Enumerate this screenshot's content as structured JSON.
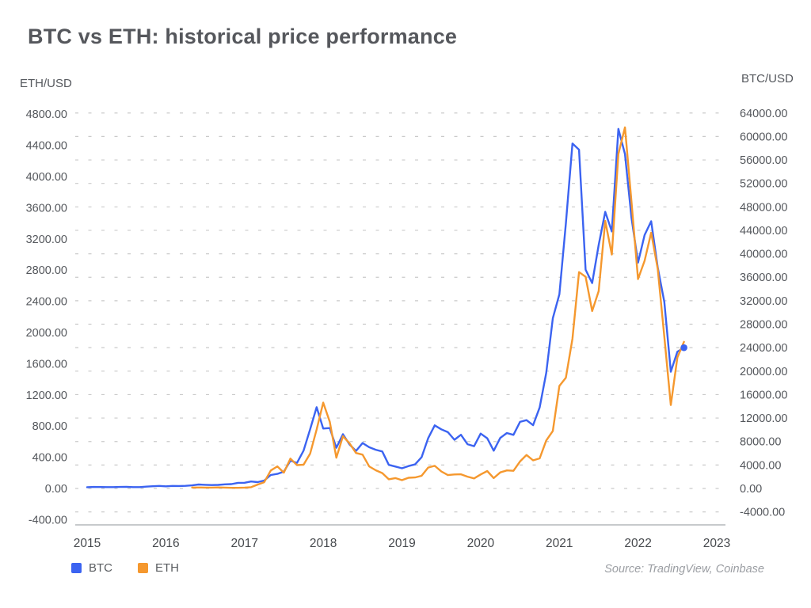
{
  "chart_data": {
    "type": "line",
    "title": "BTC vs ETH: historical price performance",
    "source": "Source: TradingView, Coinbase",
    "grid": "horizontal-dashed",
    "legend_position": "bottom-left",
    "left_axis": {
      "title": "ETH/USD",
      "min": -400,
      "max": 4800,
      "step": 400
    },
    "right_axis": {
      "title": "BTC/USD",
      "min": -4000,
      "max": 64000,
      "step": 4000
    },
    "x_axis": {
      "labels": [
        "2015",
        "2016",
        "2017",
        "2018",
        "2019",
        "2020",
        "2021",
        "2022",
        "2023"
      ],
      "start_year": 2015,
      "unit": "month"
    },
    "series": [
      {
        "name": "BTC",
        "color": "#3b63f1",
        "axis": "right",
        "start_year": 2015,
        "start_month": 1,
        "end_marker": true,
        "values": [
          217,
          254,
          244,
          236,
          230,
          263,
          284,
          230,
          236,
          314,
          377,
          430,
          368,
          437,
          416,
          448,
          531,
          673,
          624,
          575,
          610,
          700,
          745,
          963,
          970,
          1190,
          1080,
          1350,
          2300,
          2480,
          2875,
          4735,
          4360,
          6450,
          10100,
          13850,
          10220,
          10300,
          6930,
          9250,
          7500,
          6400,
          7750,
          7030,
          6600,
          6300,
          4020,
          3740,
          3440,
          3815,
          4100,
          5320,
          8560,
          10760,
          10080,
          9600,
          8300,
          9150,
          7550,
          7200,
          9350,
          8550,
          6440,
          8630,
          9450,
          9140,
          11350,
          11650,
          10780,
          13800,
          19700,
          29000,
          33100,
          45200,
          58800,
          57750,
          37300,
          35000,
          41500,
          47150,
          43800,
          61300,
          57000,
          46200,
          38500,
          43200,
          45550,
          37650,
          31800,
          19900,
          23300,
          24000
        ]
      },
      {
        "name": "ETH",
        "color": "#f5982e",
        "axis": "left",
        "start_year": 2016,
        "start_month": 5,
        "end_marker": false,
        "values": [
          12,
          12,
          11,
          11,
          13,
          11,
          8,
          8,
          11,
          16,
          50,
          80,
          230,
          283,
          203,
          383,
          300,
          305,
          447,
          756,
          1100,
          855,
          394,
          670,
          580,
          455,
          433,
          283,
          233,
          197,
          118,
          133,
          107,
          137,
          141,
          162,
          268,
          290,
          218,
          172,
          180,
          182,
          151,
          129,
          180,
          223,
          133,
          206,
          231,
          226,
          346,
          429,
          360,
          386,
          615,
          737,
          1315,
          1420,
          1920,
          2775,
          2715,
          2275,
          2530,
          3430,
          3000,
          4290,
          4630,
          3680,
          2685,
          2920,
          3280,
          2815,
          1945,
          1070,
          1680,
          1880
        ]
      }
    ],
    "colors": {
      "grid": "#cacaca",
      "axis_line": "#c7cacc",
      "tick_text": "#54575c",
      "year_text": "#474a4e"
    }
  }
}
